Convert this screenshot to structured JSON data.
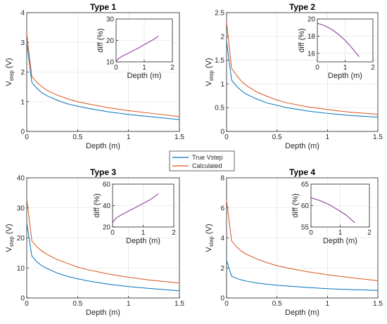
{
  "legend": {
    "entries": [
      {
        "label": "True Vstep",
        "color": "#0072BD"
      },
      {
        "label": "Calculated",
        "color": "#D95319"
      }
    ]
  },
  "chart_data": [
    {
      "type": "line",
      "title": "Type 1",
      "xlabel": "Depth  (m)",
      "ylabel_main": "V",
      "ylabel_sub": "step",
      "ylabel_unit": "  (V)",
      "xlim": [
        0,
        1.5
      ],
      "ylim": [
        0,
        4
      ],
      "xticks": [
        "0",
        "0.5",
        "1",
        "1.5"
      ],
      "xtick_values": [
        0,
        0.5,
        1,
        1.5
      ],
      "yticks": [
        "0",
        "1",
        "2",
        "3",
        "4"
      ],
      "ytick_values": [
        0,
        1,
        2,
        3,
        4
      ],
      "grid": true,
      "x": [
        0,
        0.05,
        0.1,
        0.15,
        0.2,
        0.3,
        0.4,
        0.5,
        0.6,
        0.8,
        1.0,
        1.2,
        1.5
      ],
      "series": [
        {
          "name": "True Vstep",
          "color": "#0072BD",
          "values": [
            3.0,
            1.65,
            1.45,
            1.3,
            1.2,
            1.05,
            0.93,
            0.85,
            0.78,
            0.66,
            0.57,
            0.5,
            0.4
          ]
        },
        {
          "name": "Calculated",
          "color": "#D95319",
          "values": [
            3.3,
            1.85,
            1.65,
            1.5,
            1.38,
            1.22,
            1.1,
            1.0,
            0.93,
            0.8,
            0.7,
            0.62,
            0.5
          ]
        }
      ],
      "inset": {
        "xlabel": "Depth  (m)",
        "ylabel": "diff (%)",
        "xlim": [
          0,
          2
        ],
        "ylim": [
          10,
          30
        ],
        "xticks": [
          "0",
          "1",
          "2"
        ],
        "xtick_values": [
          0,
          1,
          2
        ],
        "yticks": [
          "10",
          "20",
          "30"
        ],
        "ytick_values": [
          10,
          20,
          30
        ],
        "color": "#7E2F8E",
        "x": [
          0,
          0.05,
          0.1,
          0.2,
          0.4,
          0.6,
          0.8,
          1.0,
          1.2,
          1.4,
          1.5
        ],
        "values": [
          10.5,
          11.0,
          11.6,
          12.5,
          13.8,
          15.2,
          16.5,
          18.0,
          19.5,
          21.0,
          22.0
        ]
      }
    },
    {
      "type": "line",
      "title": "Type 2",
      "xlabel": "Depth  (m)",
      "ylabel_main": "V",
      "ylabel_sub": "step",
      "ylabel_unit": "  (V)",
      "xlim": [
        0,
        1.5
      ],
      "ylim": [
        0,
        2.5
      ],
      "xticks": [
        "0",
        "0.5",
        "1",
        "1.5"
      ],
      "xtick_values": [
        0,
        0.5,
        1,
        1.5
      ],
      "yticks": [
        "0",
        "0.5",
        "1",
        "1.5",
        "2",
        "2.5"
      ],
      "ytick_values": [
        0,
        0.5,
        1,
        1.5,
        2,
        2.5
      ],
      "grid": true,
      "x": [
        0,
        0.05,
        0.1,
        0.15,
        0.2,
        0.3,
        0.4,
        0.5,
        0.6,
        0.8,
        1.0,
        1.2,
        1.5
      ],
      "series": [
        {
          "name": "True Vstep",
          "color": "#0072BD",
          "values": [
            1.9,
            1.08,
            0.95,
            0.85,
            0.78,
            0.68,
            0.6,
            0.55,
            0.5,
            0.43,
            0.38,
            0.34,
            0.3
          ]
        },
        {
          "name": "Calculated",
          "color": "#D95319",
          "values": [
            2.3,
            1.33,
            1.18,
            1.05,
            0.96,
            0.83,
            0.74,
            0.66,
            0.6,
            0.52,
            0.46,
            0.41,
            0.36
          ]
        }
      ],
      "inset": {
        "xlabel": "Depth  (m)",
        "ylabel": "diff (%)",
        "xlim": [
          0,
          2
        ],
        "ylim": [
          15,
          20
        ],
        "xticks": [
          "0",
          "1",
          "2"
        ],
        "xtick_values": [
          0,
          1,
          2
        ],
        "yticks": [
          "16",
          "18",
          "20"
        ],
        "ytick_values": [
          16,
          18,
          20
        ],
        "color": "#7E2F8E",
        "x": [
          0,
          0.2,
          0.4,
          0.6,
          0.8,
          1.0,
          1.2,
          1.4,
          1.5
        ],
        "values": [
          19.5,
          19.3,
          19.0,
          18.6,
          18.1,
          17.5,
          16.8,
          16.0,
          15.6
        ]
      }
    },
    {
      "type": "line",
      "title": "Type 3",
      "xlabel": "Depth  (m)",
      "ylabel_main": "V",
      "ylabel_sub": "step",
      "ylabel_unit": "  (V)",
      "xlim": [
        0,
        1.5
      ],
      "ylim": [
        0,
        40
      ],
      "xticks": [
        "0",
        "0.5",
        "1",
        "1.5"
      ],
      "xtick_values": [
        0,
        0.5,
        1,
        1.5
      ],
      "yticks": [
        "0",
        "10",
        "20",
        "30",
        "40"
      ],
      "ytick_values": [
        0,
        10,
        20,
        30,
        40
      ],
      "grid": true,
      "x": [
        0,
        0.05,
        0.1,
        0.15,
        0.2,
        0.3,
        0.4,
        0.5,
        0.6,
        0.8,
        1.0,
        1.2,
        1.5
      ],
      "series": [
        {
          "name": "True Vstep",
          "color": "#0072BD",
          "values": [
            25,
            14,
            12,
            10.7,
            9.8,
            8.3,
            7.2,
            6.4,
            5.7,
            4.6,
            3.8,
            3.2,
            2.4
          ]
        },
        {
          "name": "Calculated",
          "color": "#D95319",
          "values": [
            33,
            19,
            17,
            15.6,
            14.5,
            12.8,
            11.5,
            10.3,
            9.4,
            8.0,
            6.9,
            6.0,
            5.0
          ]
        }
      ],
      "inset": {
        "xlabel": "Depth  (m)",
        "ylabel": "diff (%)",
        "xlim": [
          0,
          2
        ],
        "ylim": [
          20,
          60
        ],
        "xticks": [
          "0",
          "1",
          "2"
        ],
        "xtick_values": [
          0,
          1,
          2
        ],
        "yticks": [
          "20",
          "40",
          "60"
        ],
        "ytick_values": [
          20,
          40,
          60
        ],
        "color": "#7E2F8E",
        "x": [
          0,
          0.05,
          0.1,
          0.2,
          0.4,
          0.6,
          0.8,
          1.0,
          1.2,
          1.4,
          1.5
        ],
        "values": [
          24,
          26,
          28,
          30,
          33,
          36,
          39,
          42,
          45,
          49,
          51
        ]
      }
    },
    {
      "type": "line",
      "title": "Type 4",
      "xlabel": "Depth  (m)",
      "ylabel_main": "V",
      "ylabel_sub": "step",
      "ylabel_unit": "  (V)",
      "xlim": [
        0,
        1.5
      ],
      "ylim": [
        0,
        8
      ],
      "xticks": [
        "0",
        "0.5",
        "1",
        "1.5"
      ],
      "xtick_values": [
        0,
        0.5,
        1,
        1.5
      ],
      "yticks": [
        "0",
        "2",
        "4",
        "6",
        "8"
      ],
      "ytick_values": [
        0,
        2,
        4,
        6,
        8
      ],
      "grid": true,
      "x": [
        0,
        0.05,
        0.1,
        0.15,
        0.2,
        0.3,
        0.4,
        0.5,
        0.6,
        0.8,
        1.0,
        1.2,
        1.5
      ],
      "series": [
        {
          "name": "True Vstep",
          "color": "#0072BD",
          "values": [
            2.5,
            1.45,
            1.3,
            1.2,
            1.12,
            1.0,
            0.92,
            0.85,
            0.8,
            0.7,
            0.62,
            0.57,
            0.5
          ]
        },
        {
          "name": "Calculated",
          "color": "#D95319",
          "values": [
            6.5,
            3.8,
            3.4,
            3.1,
            2.9,
            2.6,
            2.35,
            2.15,
            2.0,
            1.75,
            1.55,
            1.38,
            1.15
          ]
        }
      ],
      "inset": {
        "xlabel": "Depth  (m)",
        "ylabel": "diff (%)",
        "xlim": [
          0,
          2
        ],
        "ylim": [
          55,
          65
        ],
        "xticks": [
          "0",
          "1",
          "2"
        ],
        "xtick_values": [
          0,
          1,
          2
        ],
        "yticks": [
          "55",
          "60",
          "65"
        ],
        "ytick_values": [
          55,
          60,
          65
        ],
        "color": "#7E2F8E",
        "x": [
          0,
          0.2,
          0.4,
          0.6,
          0.8,
          1.0,
          1.2,
          1.4,
          1.5
        ],
        "values": [
          61.8,
          61.4,
          60.9,
          60.3,
          59.5,
          58.7,
          57.8,
          56.6,
          56.0
        ]
      }
    }
  ]
}
